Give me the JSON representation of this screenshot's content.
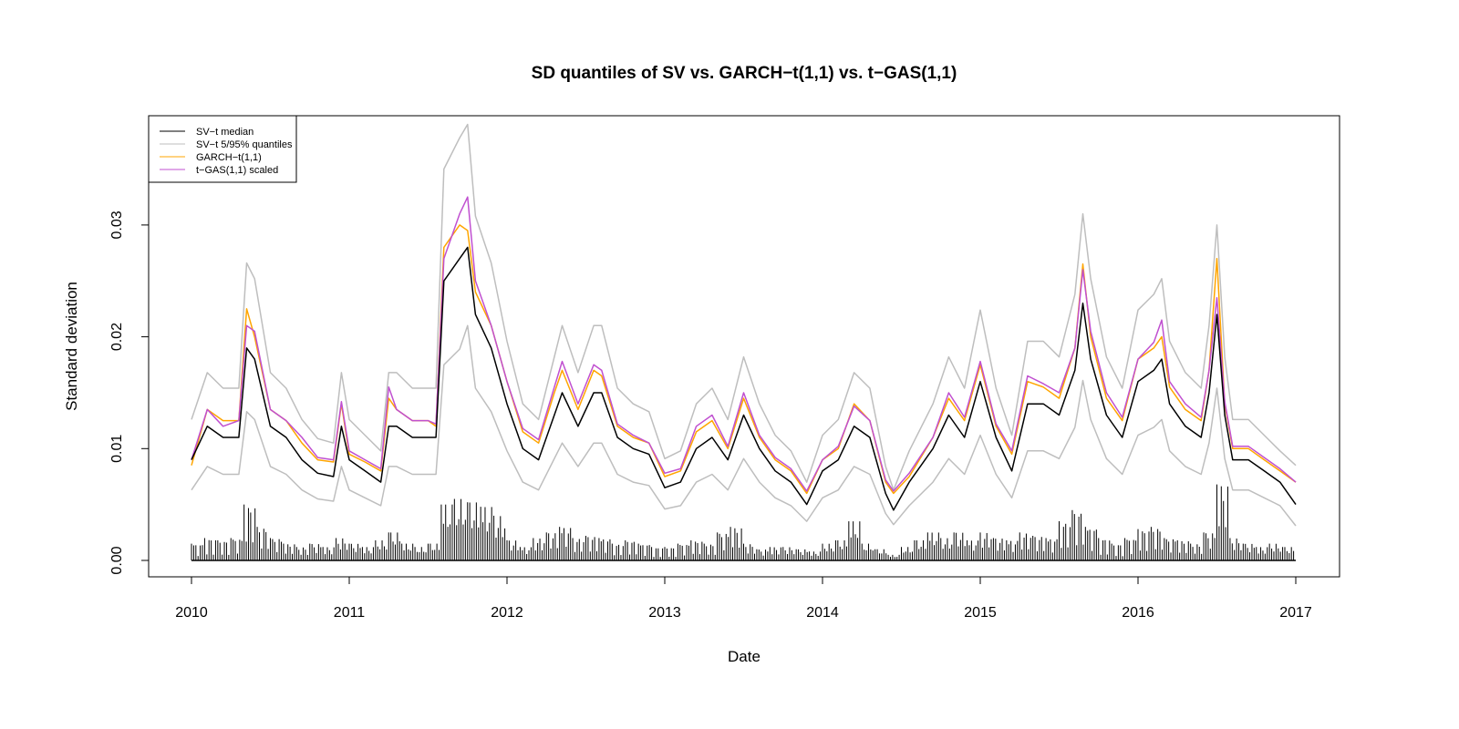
{
  "chart_data": {
    "type": "line",
    "title": "SD quantiles of SV vs. GARCH−t(1,1) vs. t−GAS(1,1)",
    "xlabel": "Date",
    "ylabel": "Standard deviation",
    "xlim": [
      2010,
      2017
    ],
    "ylim": [
      0,
      0.039
    ],
    "x_ticks": [
      "2010",
      "2011",
      "2012",
      "2013",
      "2014",
      "2015",
      "2016",
      "2017"
    ],
    "y_ticks": [
      "0.00",
      "0.01",
      "0.02",
      "0.03"
    ],
    "legend_position": "top-left",
    "legend": [
      "SV−t median",
      "SV−t 5/95% quantiles",
      "GARCH−t(1,1)",
      "t−GAS(1,1) scaled"
    ],
    "colors": {
      "median": "#000000",
      "quantiles": "#bebebe",
      "garch": "#ffa500",
      "gas": "#c050d0",
      "returns": "#000000"
    },
    "x": [
      2010.0,
      2010.1,
      2010.2,
      2010.3,
      2010.35,
      2010.4,
      2010.5,
      2010.6,
      2010.7,
      2010.8,
      2010.9,
      2010.95,
      2011.0,
      2011.1,
      2011.2,
      2011.25,
      2011.3,
      2011.4,
      2011.5,
      2011.55,
      2011.6,
      2011.7,
      2011.75,
      2011.8,
      2011.9,
      2012.0,
      2012.1,
      2012.2,
      2012.3,
      2012.35,
      2012.45,
      2012.55,
      2012.6,
      2012.7,
      2012.8,
      2012.9,
      2013.0,
      2013.1,
      2013.2,
      2013.3,
      2013.4,
      2013.5,
      2013.6,
      2013.7,
      2013.8,
      2013.9,
      2014.0,
      2014.1,
      2014.2,
      2014.3,
      2014.4,
      2014.45,
      2014.55,
      2014.7,
      2014.8,
      2014.9,
      2015.0,
      2015.1,
      2015.2,
      2015.3,
      2015.4,
      2015.5,
      2015.6,
      2015.65,
      2015.7,
      2015.8,
      2015.9,
      2016.0,
      2016.1,
      2016.15,
      2016.2,
      2016.3,
      2016.4,
      2016.45,
      2016.5,
      2016.55,
      2016.6,
      2016.7,
      2016.8,
      2016.9,
      2017.0
    ],
    "series": [
      {
        "name": "SV−t 95% quantile",
        "key": "quantiles",
        "values": [
          0.0126,
          0.0168,
          0.0154,
          0.0154,
          0.0266,
          0.0252,
          0.0168,
          0.0154,
          0.0126,
          0.0109,
          0.0105,
          0.0168,
          0.0126,
          0.0112,
          0.0098,
          0.0168,
          0.0168,
          0.0154,
          0.0154,
          0.0154,
          0.035,
          0.0378,
          0.039,
          0.0308,
          0.0266,
          0.0196,
          0.014,
          0.0126,
          0.0182,
          0.021,
          0.0168,
          0.021,
          0.021,
          0.0154,
          0.014,
          0.0133,
          0.0091,
          0.0098,
          0.014,
          0.0154,
          0.0126,
          0.0182,
          0.014,
          0.0112,
          0.0098,
          0.007,
          0.0112,
          0.0126,
          0.0168,
          0.0154,
          0.0084,
          0.0063,
          0.0098,
          0.014,
          0.0182,
          0.0154,
          0.0224,
          0.0154,
          0.0112,
          0.0196,
          0.0196,
          0.0182,
          0.0238,
          0.031,
          0.0252,
          0.0182,
          0.0154,
          0.0224,
          0.0238,
          0.0252,
          0.0196,
          0.0168,
          0.0154,
          0.021,
          0.03,
          0.0182,
          0.0126,
          0.0126,
          0.0112,
          0.0098,
          0.0085
        ]
      },
      {
        "name": "SV−t 5% quantile",
        "key": "quantiles",
        "values": [
          0.0063,
          0.0084,
          0.0077,
          0.0077,
          0.0133,
          0.0126,
          0.0084,
          0.0077,
          0.0063,
          0.0055,
          0.0053,
          0.0084,
          0.0063,
          0.0056,
          0.0049,
          0.0084,
          0.0084,
          0.0077,
          0.0077,
          0.0077,
          0.0175,
          0.0189,
          0.021,
          0.0154,
          0.0133,
          0.0098,
          0.007,
          0.0063,
          0.0091,
          0.0105,
          0.0084,
          0.0105,
          0.0105,
          0.0077,
          0.007,
          0.0067,
          0.0046,
          0.0049,
          0.007,
          0.0077,
          0.0063,
          0.0091,
          0.007,
          0.0056,
          0.0049,
          0.0035,
          0.0056,
          0.0063,
          0.0084,
          0.0077,
          0.0042,
          0.0032,
          0.0049,
          0.007,
          0.0091,
          0.0077,
          0.0112,
          0.0077,
          0.0056,
          0.0098,
          0.0098,
          0.0091,
          0.0119,
          0.0161,
          0.0126,
          0.0091,
          0.0077,
          0.0112,
          0.0119,
          0.0126,
          0.0098,
          0.0084,
          0.0077,
          0.0105,
          0.0154,
          0.0091,
          0.0063,
          0.0063,
          0.0056,
          0.0049,
          0.0031
        ]
      },
      {
        "name": "GARCH−t(1,1)",
        "key": "garch",
        "values": [
          0.0085,
          0.0135,
          0.0125,
          0.0125,
          0.0225,
          0.02,
          0.0135,
          0.0125,
          0.0105,
          0.009,
          0.0088,
          0.014,
          0.0095,
          0.0088,
          0.008,
          0.0145,
          0.0135,
          0.0125,
          0.0125,
          0.012,
          0.028,
          0.03,
          0.0295,
          0.024,
          0.021,
          0.016,
          0.0115,
          0.0105,
          0.015,
          0.017,
          0.0135,
          0.017,
          0.0165,
          0.012,
          0.011,
          0.0105,
          0.0075,
          0.008,
          0.0115,
          0.0125,
          0.01,
          0.0145,
          0.011,
          0.009,
          0.008,
          0.006,
          0.009,
          0.01,
          0.014,
          0.0125,
          0.007,
          0.006,
          0.0075,
          0.011,
          0.0145,
          0.0125,
          0.0175,
          0.012,
          0.0095,
          0.016,
          0.0155,
          0.0145,
          0.019,
          0.0265,
          0.02,
          0.0145,
          0.0125,
          0.018,
          0.019,
          0.02,
          0.0155,
          0.0135,
          0.0125,
          0.017,
          0.027,
          0.014,
          0.01,
          0.01,
          0.009,
          0.008,
          0.007
        ]
      },
      {
        "name": "t−GAS(1,1) scaled",
        "key": "gas",
        "values": [
          0.009,
          0.0135,
          0.012,
          0.0125,
          0.021,
          0.0205,
          0.0135,
          0.0125,
          0.011,
          0.0092,
          0.009,
          0.0142,
          0.0098,
          0.009,
          0.0082,
          0.0155,
          0.0135,
          0.0125,
          0.0125,
          0.0122,
          0.027,
          0.031,
          0.0325,
          0.025,
          0.021,
          0.016,
          0.0118,
          0.0108,
          0.0155,
          0.0178,
          0.014,
          0.0175,
          0.017,
          0.0122,
          0.0112,
          0.0105,
          0.0078,
          0.0082,
          0.012,
          0.013,
          0.0102,
          0.015,
          0.0112,
          0.0092,
          0.0082,
          0.0062,
          0.009,
          0.0102,
          0.0138,
          0.0125,
          0.0072,
          0.0062,
          0.0078,
          0.011,
          0.015,
          0.0128,
          0.0178,
          0.0122,
          0.0098,
          0.0165,
          0.0158,
          0.015,
          0.019,
          0.026,
          0.0205,
          0.015,
          0.0128,
          0.018,
          0.0195,
          0.0215,
          0.016,
          0.014,
          0.0128,
          0.017,
          0.0235,
          0.0142,
          0.0102,
          0.0102,
          0.0092,
          0.0082,
          0.007
        ]
      },
      {
        "name": "SV−t median",
        "key": "median",
        "values": [
          0.009,
          0.012,
          0.011,
          0.011,
          0.019,
          0.018,
          0.012,
          0.011,
          0.009,
          0.0078,
          0.0075,
          0.012,
          0.009,
          0.008,
          0.007,
          0.012,
          0.012,
          0.011,
          0.011,
          0.011,
          0.025,
          0.027,
          0.028,
          0.022,
          0.019,
          0.014,
          0.01,
          0.009,
          0.013,
          0.015,
          0.012,
          0.015,
          0.015,
          0.011,
          0.01,
          0.0095,
          0.0065,
          0.007,
          0.01,
          0.011,
          0.009,
          0.013,
          0.01,
          0.008,
          0.007,
          0.005,
          0.008,
          0.009,
          0.012,
          0.011,
          0.006,
          0.0045,
          0.007,
          0.01,
          0.013,
          0.011,
          0.016,
          0.011,
          0.008,
          0.014,
          0.014,
          0.013,
          0.017,
          0.023,
          0.018,
          0.013,
          0.011,
          0.016,
          0.017,
          0.018,
          0.014,
          0.012,
          0.011,
          0.015,
          0.022,
          0.013,
          0.009,
          0.009,
          0.008,
          0.007,
          0.005
        ]
      }
    ],
    "abs_returns_monthly": [
      0.0015,
      0.002,
      0.0018,
      0.002,
      0.005,
      0.003,
      0.002,
      0.0015,
      0.0012,
      0.0015,
      0.0012,
      0.002,
      0.0015,
      0.0012,
      0.0018,
      0.0025,
      0.0015,
      0.0012,
      0.0015,
      0.005,
      0.0055,
      0.0052,
      0.0048,
      0.004,
      0.0018,
      0.0012,
      0.002,
      0.0025,
      0.003,
      0.002,
      0.0022,
      0.002,
      0.0015,
      0.0018,
      0.0015,
      0.0012,
      0.0012,
      0.0015,
      0.0018,
      0.0015,
      0.0025,
      0.003,
      0.0015,
      0.001,
      0.0012,
      0.0012,
      0.001,
      0.0008,
      0.0015,
      0.0018,
      0.0035,
      0.0015,
      0.001,
      0.0005,
      0.0012,
      0.0018,
      0.0025,
      0.002,
      0.0025,
      0.0018,
      0.0025,
      0.002,
      0.0018,
      0.0025,
      0.0022,
      0.002,
      0.0035,
      0.0045,
      0.003,
      0.002,
      0.0015,
      0.002,
      0.0028,
      0.003,
      0.002,
      0.0018,
      0.0015,
      0.0025,
      0.0068,
      0.002,
      0.0015,
      0.0012,
      0.0015,
      0.0012
    ]
  }
}
